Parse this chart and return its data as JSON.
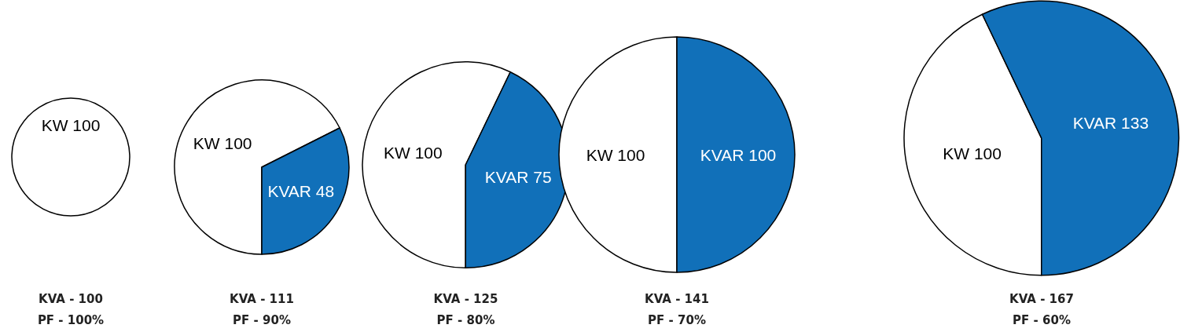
{
  "chart_data": [
    {
      "type": "pie",
      "title": "KVA - 100",
      "subtitle": "PF - 100%",
      "categories": [
        "KW"
      ],
      "values": [
        100
      ],
      "colors": [
        "#ffffff"
      ],
      "data_labels": true
    },
    {
      "type": "pie",
      "title": "KVA - 111",
      "subtitle": "PF - 90%",
      "categories": [
        "KW",
        "KVAR"
      ],
      "values": [
        100,
        48
      ],
      "colors": [
        "#ffffff",
        "#1170b9"
      ],
      "data_labels": true
    },
    {
      "type": "pie",
      "title": "KVA - 125",
      "subtitle": "PF - 80%",
      "categories": [
        "KW",
        "KVAR"
      ],
      "values": [
        100,
        75
      ],
      "colors": [
        "#ffffff",
        "#1170b9"
      ],
      "data_labels": true
    },
    {
      "type": "pie",
      "title": "KVA - 141",
      "subtitle": "PF - 70%",
      "categories": [
        "KW",
        "KVAR"
      ],
      "values": [
        100,
        100
      ],
      "colors": [
        "#ffffff",
        "#1170b9"
      ],
      "data_labels": true
    },
    {
      "type": "pie",
      "title": "KVA - 167",
      "subtitle": "PF - 60%",
      "categories": [
        "KW",
        "KVAR"
      ],
      "values": [
        100,
        133
      ],
      "colors": [
        "#ffffff",
        "#1170b9"
      ],
      "data_labels": true
    }
  ]
}
